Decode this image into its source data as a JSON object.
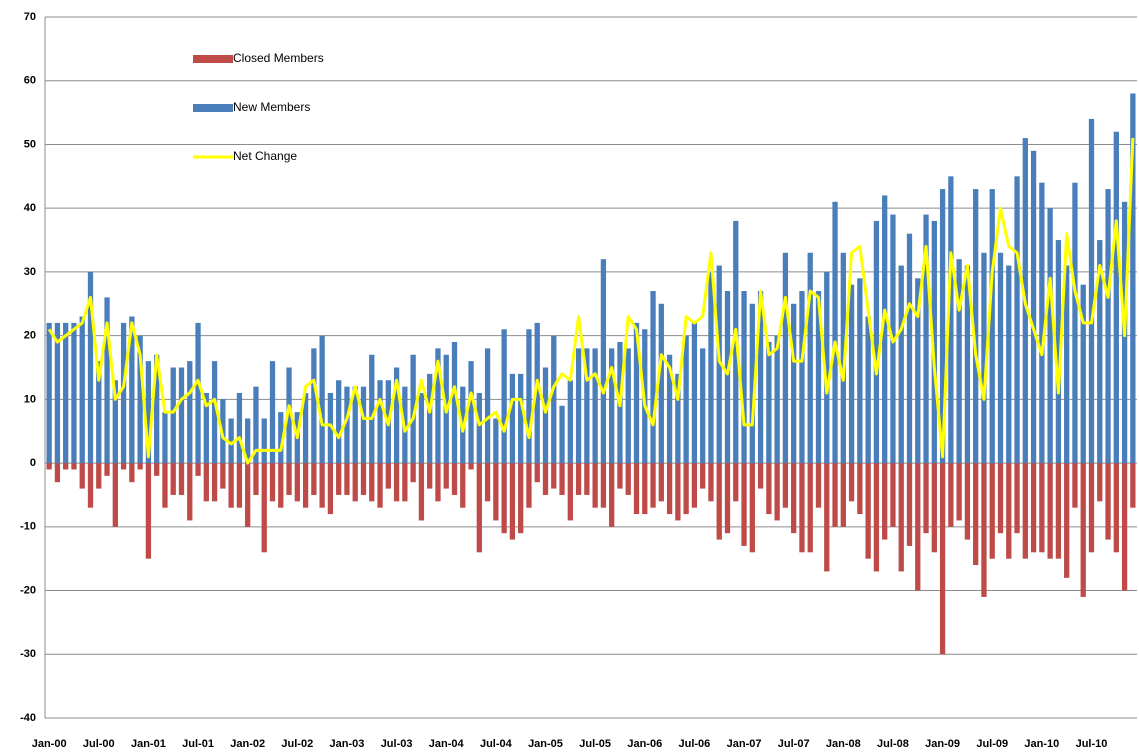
{
  "chart_data": {
    "type": "bar",
    "legend": "upper left",
    "grid": true,
    "ylim": [
      -40,
      70
    ],
    "yticks": [
      -40,
      -30,
      -20,
      -10,
      0,
      10,
      20,
      30,
      40,
      50,
      60,
      70
    ],
    "categories": [
      "Jan-00",
      null,
      null,
      null,
      null,
      null,
      "Jul-00",
      null,
      null,
      null,
      null,
      null,
      "Jan-01",
      null,
      null,
      null,
      null,
      null,
      "Jul-01",
      null,
      null,
      null,
      null,
      null,
      "Jan-02",
      null,
      null,
      null,
      null,
      null,
      "Jul-02",
      null,
      null,
      null,
      null,
      null,
      "Jan-03",
      null,
      null,
      null,
      null,
      null,
      "Jul-03",
      null,
      null,
      null,
      null,
      null,
      "Jan-04",
      null,
      null,
      null,
      null,
      null,
      "Jul-04",
      null,
      null,
      null,
      null,
      null,
      "Jan-05",
      null,
      null,
      null,
      null,
      null,
      "Jul-05",
      null,
      null,
      null,
      null,
      null,
      "Jan-06",
      null,
      null,
      null,
      null,
      null,
      "Jul-06",
      null,
      null,
      null,
      null,
      null,
      "Jan-07",
      null,
      null,
      null,
      null,
      null,
      "Jul-07",
      null,
      null,
      null,
      null,
      null,
      "Jan-08",
      null,
      null,
      null,
      null,
      null,
      "Jul-08",
      null,
      null,
      null,
      null,
      null,
      "Jan-09",
      null,
      null,
      null,
      null,
      null,
      "Jul-09",
      null,
      null,
      null,
      null,
      null,
      "Jan-10",
      null,
      null,
      null,
      null,
      null,
      "Jul-10",
      null,
      null,
      null,
      null,
      null
    ],
    "series": [
      {
        "name": "Closed Members",
        "type": "bar",
        "color": "#be4b48",
        "values": [
          -1,
          -3,
          -1,
          -1,
          -4,
          -7,
          -4,
          -2,
          -10,
          -1,
          -3,
          -1,
          -15,
          -2,
          -7,
          -5,
          -5,
          -9,
          -2,
          -6,
          -6,
          -4,
          -7,
          -7,
          -10,
          -5,
          -14,
          -6,
          -7,
          -5,
          -6,
          -7,
          -5,
          -7,
          -8,
          -5,
          -5,
          -6,
          -5,
          -6,
          -7,
          -4,
          -6,
          -6,
          -3,
          -9,
          -4,
          -6,
          -4,
          -5,
          -7,
          -1,
          -14,
          -6,
          -9,
          -11,
          -12,
          -11,
          -7,
          -3,
          -5,
          -4,
          -5,
          -9,
          -5,
          -5,
          -7,
          -7,
          -10,
          -4,
          -5,
          -8,
          -8,
          -7,
          -6,
          -8,
          -9,
          -8,
          -7,
          -4,
          -6,
          -12,
          -11,
          -6,
          -13,
          -14,
          -4,
          -8,
          -9,
          -7,
          -11,
          -14,
          -14,
          -7,
          -17,
          -10,
          -10,
          -6,
          -8,
          -15,
          -17,
          -12,
          -10,
          -17,
          -13,
          -20,
          -11,
          -14,
          -30,
          -10,
          -9,
          -12,
          -16,
          -21,
          -15,
          -11,
          -15,
          -11,
          -15,
          -14,
          -14,
          -15,
          -15,
          -18,
          -7,
          -21,
          -14,
          -6,
          -12,
          -14,
          -20,
          -7
        ]
      },
      {
        "name": "New Members",
        "type": "bar",
        "color": "#4a7ebb",
        "values": [
          22,
          22,
          22,
          22,
          23,
          30,
          16,
          26,
          13,
          22,
          23,
          20,
          16,
          17,
          8,
          15,
          15,
          16,
          22,
          11,
          16,
          10,
          7,
          11,
          7,
          12,
          7,
          16,
          8,
          15,
          8,
          11,
          18,
          20,
          11,
          13,
          12,
          12,
          12,
          17,
          13,
          13,
          15,
          12,
          17,
          11,
          14,
          18,
          17,
          19,
          12,
          16,
          11,
          18,
          7,
          21,
          14,
          14,
          21,
          22,
          15,
          20,
          9,
          13,
          18,
          18,
          18,
          32,
          18,
          19,
          18,
          22,
          21,
          27,
          25,
          17,
          14,
          20,
          22,
          18,
          30,
          31,
          27,
          38,
          27,
          25,
          27,
          19,
          20,
          33,
          25,
          27,
          33,
          27,
          30,
          41,
          33,
          28,
          29,
          23,
          38,
          42,
          39,
          31,
          36,
          29,
          39,
          38,
          43,
          45,
          32,
          31,
          43,
          33,
          43,
          33,
          31,
          45,
          51,
          49,
          44,
          40,
          35,
          31,
          44,
          28,
          54,
          35,
          43,
          52,
          41,
          58
        ]
      },
      {
        "name": "Net Change",
        "type": "line",
        "color": "#ffff00",
        "values": [
          21,
          19,
          20,
          21,
          22,
          26,
          13,
          22,
          10,
          12,
          22,
          17,
          1,
          17,
          8,
          8,
          10,
          11,
          13,
          9,
          10,
          4,
          3,
          4,
          0,
          2,
          2,
          2,
          2,
          9,
          4,
          12,
          13,
          6,
          6,
          4,
          7,
          12,
          7,
          7,
          10,
          6,
          13,
          5,
          7,
          13,
          8,
          16,
          8,
          12,
          5,
          11,
          6,
          7,
          8,
          5,
          10,
          10,
          4,
          13,
          8,
          12,
          14,
          13,
          23,
          13,
          14,
          11,
          15,
          9,
          23,
          21,
          9,
          6,
          17,
          15,
          10,
          23,
          22,
          23,
          33,
          16,
          14,
          21,
          6,
          6,
          27,
          17,
          18,
          26,
          16,
          16,
          27,
          26,
          11,
          19,
          13,
          33,
          34,
          24,
          14,
          24,
          19,
          21,
          25,
          23,
          34,
          15,
          1,
          33,
          24,
          31,
          17,
          10,
          30,
          40,
          34,
          33,
          25,
          21,
          17,
          29,
          11,
          36,
          27,
          22,
          22,
          31,
          26,
          38,
          20,
          51
        ]
      }
    ]
  }
}
